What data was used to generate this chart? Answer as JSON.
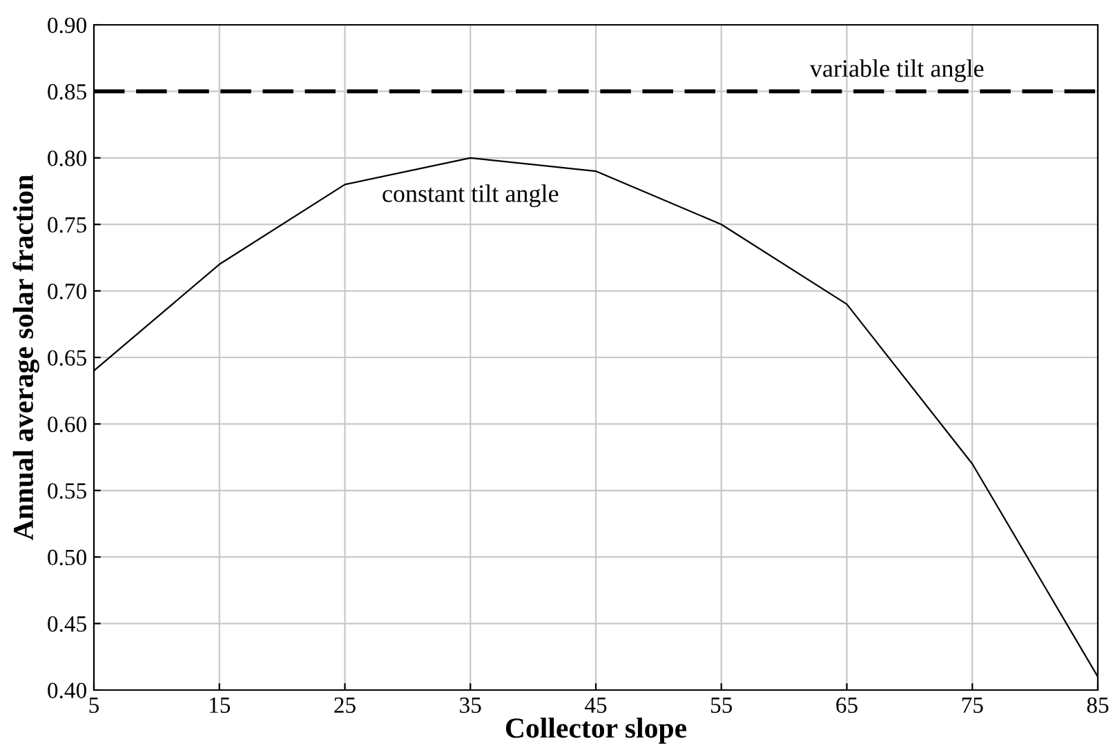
{
  "chart_data": {
    "type": "line",
    "xlabel": "Collector slope",
    "ylabel": "Annual average solar fraction",
    "x": [
      5,
      15,
      25,
      35,
      45,
      55,
      65,
      75,
      85
    ],
    "series": [
      {
        "name": "constant tilt angle",
        "color": "#000000",
        "values": [
          0.64,
          0.72,
          0.78,
          0.8,
          0.79,
          0.75,
          0.69,
          0.57,
          0.41
        ]
      }
    ],
    "ref_lines": [
      {
        "axis": "y",
        "value": 0.85,
        "label": "variable tilt angle",
        "color": "#000000",
        "line_style": "dashed"
      }
    ],
    "xlim": [
      5,
      85
    ],
    "xticks": [
      5,
      15,
      25,
      35,
      45,
      55,
      65,
      75,
      85
    ],
    "ylim": [
      0.4,
      0.9
    ],
    "yticks": [
      {
        "value": 0.4,
        "label": "0.40"
      },
      0.45,
      {
        "value": 0.5,
        "label": "0.50"
      },
      0.55,
      {
        "value": 0.6,
        "label": "0.60"
      },
      0.65,
      {
        "value": 0.7,
        "label": "0.70"
      },
      0.75,
      {
        "value": 0.8,
        "label": "0.80"
      },
      0.85,
      {
        "value": 0.9,
        "label": "0.90"
      }
    ],
    "grid": true,
    "marker": "none",
    "line_style": "solid"
  }
}
